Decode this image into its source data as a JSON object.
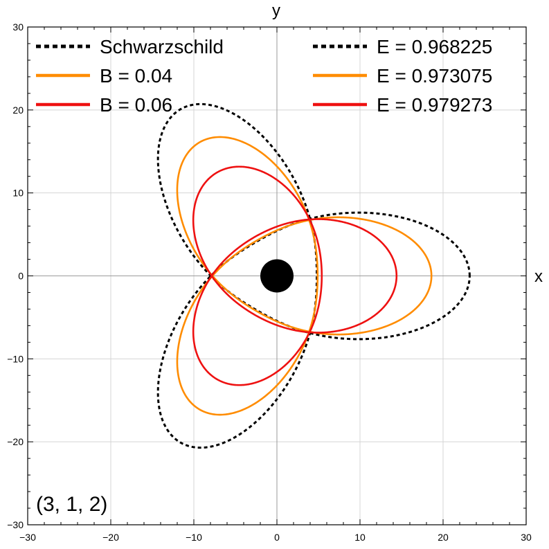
{
  "chart_data": {
    "type": "line",
    "xlabel": "x",
    "ylabel": "y",
    "xlim": [
      -30,
      30
    ],
    "ylim": [
      -30,
      30
    ],
    "xticks": [
      -30,
      -20,
      -10,
      0,
      10,
      20,
      30
    ],
    "yticks": [
      -30,
      -20,
      -10,
      0,
      10,
      20,
      30
    ],
    "xtick_labels": [
      "−30",
      "−20",
      "−10",
      "0",
      "10",
      "20",
      "30"
    ],
    "ytick_labels": [
      "−30",
      "−20",
      "−10",
      "0",
      "10",
      "20",
      "30"
    ],
    "grid": true,
    "annotation": "(3, 1, 2)",
    "black_hole": {
      "x": 0,
      "y": 0,
      "radius": 2,
      "color": "#000000"
    },
    "legend_left": [
      {
        "label": "Schwarzschild",
        "color": "#000000",
        "style": "dashed"
      },
      {
        "label": "B = 0.04",
        "color": "#FF8C00",
        "style": "solid"
      },
      {
        "label": "B = 0.06",
        "color": "#EE1111",
        "style": "solid"
      }
    ],
    "legend_right": [
      {
        "label": "E = 0.968225",
        "color": "#000000",
        "style": "dashed"
      },
      {
        "label": "E = 0.973075",
        "color": "#FF8C00",
        "style": "solid"
      },
      {
        "label": "E = 0.979273",
        "color": "#EE1111",
        "style": "solid"
      }
    ],
    "series": [
      {
        "name": "Schwarzschild",
        "color": "#000000",
        "style": "dashed",
        "r_apo": 23.2,
        "r_peri": 4.8,
        "apo_angle_deg": 0,
        "petals": 3,
        "turns": 2
      },
      {
        "name": "B = 0.04",
        "color": "#FF8C00",
        "style": "solid",
        "r_apo": 18.6,
        "r_peri": 4.9,
        "apo_angle_deg": 0,
        "petals": 3,
        "turns": 2
      },
      {
        "name": "B = 0.06",
        "color": "#EE1111",
        "style": "solid",
        "r_apo": 14.4,
        "r_peri": 5.4,
        "apo_angle_deg": 0,
        "petals": 3,
        "turns": 2
      }
    ]
  }
}
